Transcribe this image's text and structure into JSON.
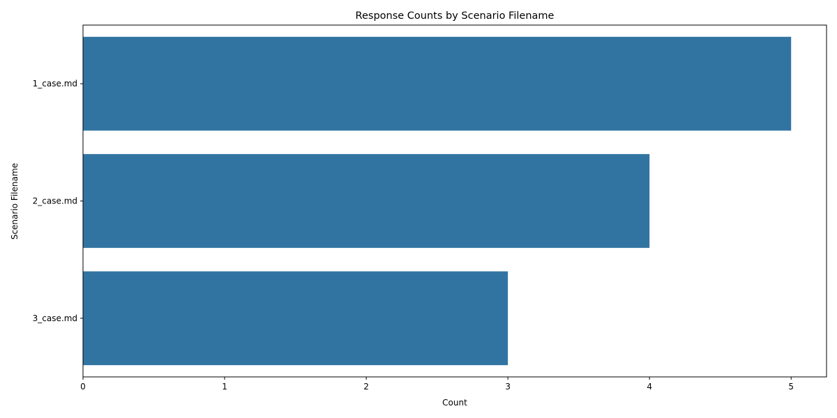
{
  "chart_data": {
    "type": "bar",
    "orientation": "horizontal",
    "title": "Response Counts by Scenario Filename",
    "xlabel": "Count",
    "ylabel": "Scenario Filename",
    "categories": [
      "1_case.md",
      "2_case.md",
      "3_case.md"
    ],
    "values": [
      5,
      4,
      3
    ],
    "xlim": [
      0,
      5.25
    ],
    "xticks": [
      "0",
      "1",
      "2",
      "3",
      "4",
      "5"
    ],
    "grid": false,
    "legend": "none",
    "bar_color": "#3274a1"
  }
}
